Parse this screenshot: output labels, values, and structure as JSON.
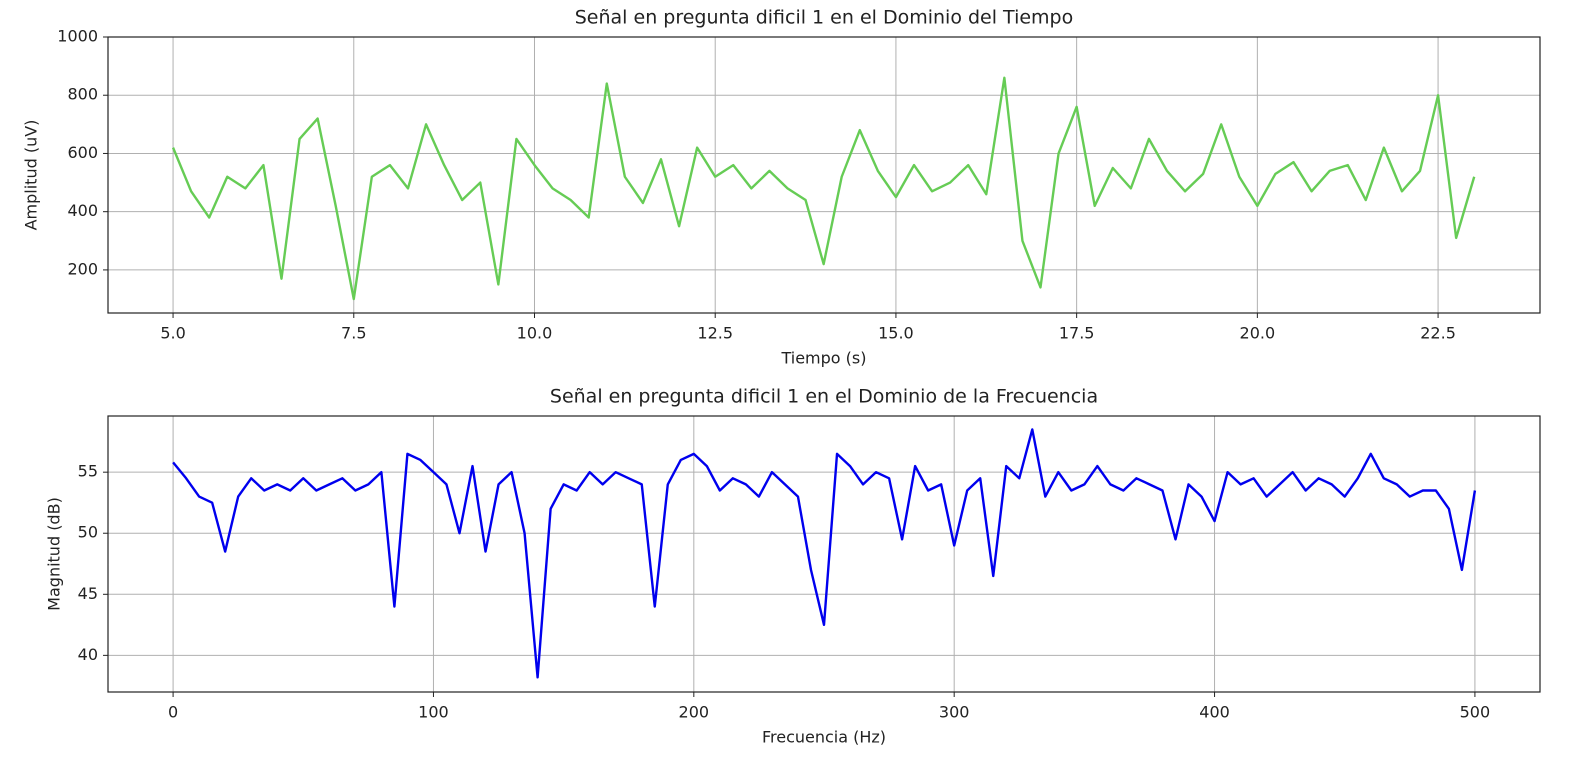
{
  "chart_data": [
    {
      "type": "line",
      "title": "Señal en pregunta dificil 1 en el Dominio del Tiempo",
      "xlabel": "Tiempo (s)",
      "ylabel": "Amplitud (uV)",
      "color": "#66cc55",
      "grid": true,
      "x": [
        5.0,
        5.25,
        5.5,
        5.75,
        6.0,
        6.25,
        6.5,
        6.75,
        7.0,
        7.25,
        7.5,
        7.75,
        8.0,
        8.25,
        8.5,
        8.75,
        9.0,
        9.25,
        9.5,
        9.75,
        10.0,
        10.25,
        10.5,
        10.75,
        11.0,
        11.25,
        11.5,
        11.75,
        12.0,
        12.25,
        12.5,
        12.75,
        13.0,
        13.25,
        13.5,
        13.75,
        14.0,
        14.25,
        14.5,
        14.75,
        15.0,
        15.25,
        15.5,
        15.75,
        16.0,
        16.25,
        16.5,
        16.75,
        17.0,
        17.25,
        17.5,
        17.75,
        18.0,
        18.25,
        18.5,
        18.75,
        19.0,
        19.25,
        19.5,
        19.75,
        20.0,
        20.25,
        20.5,
        20.75,
        21.0,
        21.25,
        21.5,
        21.75,
        22.0,
        22.25,
        22.5,
        22.75,
        23.0
      ],
      "values": [
        620,
        470,
        380,
        520,
        480,
        560,
        170,
        650,
        720,
        420,
        100,
        520,
        560,
        480,
        700,
        560,
        440,
        500,
        150,
        650,
        560,
        480,
        440,
        380,
        840,
        520,
        430,
        580,
        350,
        620,
        520,
        560,
        480,
        540,
        480,
        440,
        220,
        520,
        680,
        540,
        450,
        560,
        470,
        500,
        560,
        460,
        860,
        300,
        140,
        600,
        760,
        420,
        550,
        480,
        650,
        540,
        470,
        530,
        700,
        520,
        420,
        530,
        570,
        470,
        540,
        560,
        440,
        620,
        470,
        540,
        800,
        310,
        520
      ],
      "xlim": [
        4.1,
        23.91
      ],
      "ylim": [
        52,
        1000
      ],
      "xticks": [
        {
          "value": 5,
          "label": "5.0"
        },
        7.5,
        {
          "value": 10,
          "label": "10.0"
        },
        12.5,
        {
          "value": 15,
          "label": "15.0"
        },
        17.5,
        {
          "value": 20,
          "label": "20.0"
        },
        22.5
      ],
      "yticks": [
        200,
        400,
        600,
        800,
        1000
      ]
    },
    {
      "type": "line",
      "title": "Señal en pregunta dificil 1 en el Dominio de la Frecuencia",
      "xlabel": "Frecuencia (Hz)",
      "ylabel": "Magnitud (dB)",
      "color": "#0000ee",
      "grid": true,
      "x": [
        0,
        5,
        10,
        15,
        20,
        25,
        30,
        35,
        40,
        45,
        50,
        55,
        60,
        65,
        70,
        75,
        80,
        85,
        90,
        95,
        100,
        105,
        110,
        115,
        120,
        125,
        130,
        135,
        140,
        145,
        150,
        155,
        160,
        165,
        170,
        175,
        180,
        185,
        190,
        195,
        200,
        205,
        210,
        215,
        220,
        225,
        230,
        235,
        240,
        245,
        250,
        255,
        260,
        265,
        270,
        275,
        280,
        285,
        290,
        295,
        300,
        305,
        310,
        315,
        320,
        325,
        330,
        335,
        340,
        345,
        350,
        355,
        360,
        365,
        370,
        375,
        380,
        385,
        390,
        395,
        400,
        405,
        410,
        415,
        420,
        425,
        430,
        435,
        440,
        445,
        450,
        455,
        460,
        465,
        470,
        475,
        480,
        485,
        490,
        495,
        500
      ],
      "values": [
        55.8,
        54.5,
        53,
        52.5,
        48.5,
        53,
        54.5,
        53.5,
        54,
        53.5,
        54.5,
        53.5,
        54,
        54.5,
        53.5,
        54,
        55,
        44,
        56.5,
        56,
        55,
        54,
        50,
        55.5,
        48.5,
        54,
        55,
        50,
        38.2,
        52,
        54,
        53.5,
        55,
        54,
        55,
        54.5,
        54,
        44,
        54,
        56,
        56.5,
        55.5,
        53.5,
        54.5,
        54,
        53,
        55,
        54,
        53,
        47,
        42.5,
        56.5,
        55.5,
        54,
        55,
        54.5,
        49.5,
        55.5,
        53.5,
        54,
        49,
        53.5,
        54.5,
        46.5,
        55.5,
        54.5,
        58.5,
        53,
        55,
        53.5,
        54,
        55.5,
        54,
        53.5,
        54.5,
        54,
        53.5,
        49.5,
        54,
        53,
        51,
        55,
        54,
        54.5,
        53,
        54,
        55,
        53.5,
        54.5,
        54,
        53,
        54.5,
        56.5,
        54.5,
        54,
        53,
        53.5,
        53.5,
        52,
        47,
        53.5
      ],
      "xlim": [
        -25,
        525
      ],
      "ylim": [
        37,
        59.6
      ],
      "xticks": [
        0,
        100,
        200,
        300,
        400,
        500
      ],
      "yticks": [
        40,
        45,
        50,
        55
      ]
    }
  ]
}
